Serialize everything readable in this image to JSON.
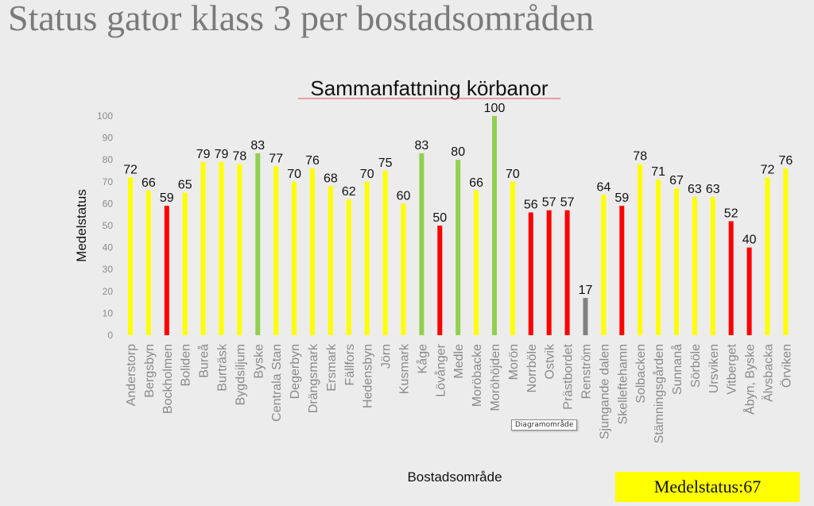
{
  "page": {
    "title": "Status gator klass 3 per bostadsområden",
    "tooltip": "Diagramområde",
    "summary_label": "Medelstatus:",
    "summary_value": "67"
  },
  "colors": {
    "yellow": "#ffff00",
    "red": "#ff0000",
    "green": "#92d050",
    "gray": "#808080",
    "title_underline": "#e05050"
  },
  "chart_data": {
    "type": "bar",
    "title": "Sammanfattning körbanor",
    "xlabel": "Bostadsområde",
    "ylabel": "Medelstatus",
    "ylim": [
      0,
      100
    ],
    "yticks": [
      0,
      10,
      20,
      30,
      40,
      50,
      60,
      70,
      80,
      90,
      100
    ],
    "grid": false,
    "legend": "none",
    "categories": [
      "Anderstorp",
      "Bergsbyn",
      "Bockholmen",
      "Boliden",
      "Bureå",
      "Burträsk",
      "Bygdsiljum",
      "Byske",
      "Centrala Stan",
      "Degerbyn",
      "Drängsmark",
      "Ersmark",
      "Fällfors",
      "Hedensbyn",
      "Jörn",
      "Kusmark",
      "Kåge",
      "Lövånger",
      "Medle",
      "Moröbacke",
      "Moröhöjden",
      "Morön",
      "Norrböle",
      "Ostvik",
      "Prästbordet",
      "Renström",
      "Sjungande dalen",
      "Skelleftehamn",
      "Solbacken",
      "Stämningsgården",
      "Sunnanå",
      "Sörböle",
      "Ursviken",
      "Vitberget",
      "Åbyn, Byske",
      "Älvsbacka",
      "Örviken"
    ],
    "values": [
      72,
      66,
      59,
      65,
      79,
      79,
      78,
      83,
      77,
      70,
      76,
      68,
      62,
      70,
      75,
      60,
      83,
      50,
      80,
      66,
      100,
      70,
      56,
      57,
      57,
      17,
      64,
      59,
      78,
      71,
      67,
      63,
      63,
      52,
      40,
      72,
      76
    ],
    "bar_colors": [
      "yellow",
      "yellow",
      "red",
      "yellow",
      "yellow",
      "yellow",
      "yellow",
      "green",
      "yellow",
      "yellow",
      "yellow",
      "yellow",
      "yellow",
      "yellow",
      "yellow",
      "yellow",
      "green",
      "red",
      "green",
      "yellow",
      "green",
      "yellow",
      "red",
      "red",
      "red",
      "gray",
      "yellow",
      "red",
      "yellow",
      "yellow",
      "yellow",
      "yellow",
      "yellow",
      "red",
      "red",
      "yellow",
      "yellow"
    ]
  }
}
